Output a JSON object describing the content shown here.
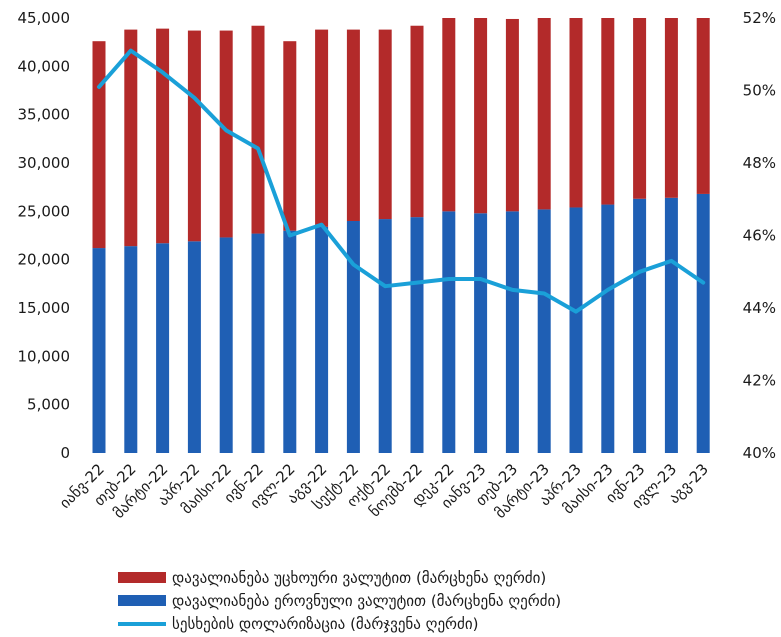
{
  "chart_data": {
    "type": "bar",
    "categories": [
      "იანვ-22",
      "თებ-22",
      "მარტი-22",
      "აპრ-22",
      "მაისი-22",
      "ივნ-22",
      "ივლ-22",
      "აგვ-22",
      "სექტ-22",
      "ოქტ-22",
      "ნოემბ-22",
      "დეკ-22",
      "იანვ-23",
      "თებ-23",
      "მარტი-23",
      "აპრ-23",
      "მაისი-23",
      "ივნ-23",
      "ივლ-23",
      "აგვ-23"
    ],
    "series": [
      {
        "name": "დავალიანება ეროვნული ვალუტით (მარცხენა ღერძი)",
        "type": "bar",
        "stack": "total",
        "axis": "left",
        "color": "#1f5fb4",
        "values": [
          21200,
          21400,
          21700,
          21900,
          22300,
          22700,
          23000,
          23400,
          24000,
          24200,
          24400,
          25000,
          24800,
          25000,
          25200,
          25400,
          25700,
          26300,
          26400,
          26800
        ]
      },
      {
        "name": "დავალიანება უცხოური ვალუტით (მარცხენა ღერძი)",
        "type": "bar",
        "stack": "total",
        "axis": "left",
        "color": "#b32a2a",
        "values": [
          21400,
          22400,
          22200,
          21800,
          21400,
          21500,
          19600,
          20400,
          19800,
          19600,
          19800,
          20300,
          20200,
          19900,
          20200,
          19900,
          20600,
          21600,
          21300,
          21200
        ]
      },
      {
        "name": "სესხების დოლარიზაცია (მარჯვენა ღერძი)",
        "type": "line",
        "axis": "right",
        "color": "#1aa0d8",
        "values": [
          50.1,
          51.1,
          50.5,
          49.8,
          48.9,
          48.4,
          46.0,
          46.3,
          45.2,
          44.6,
          44.7,
          44.8,
          44.8,
          44.5,
          44.4,
          43.9,
          44.5,
          45.0,
          45.3,
          44.7
        ]
      }
    ],
    "y_left": {
      "min": 0,
      "max": 45000,
      "step": 5000,
      "tick_labels": [
        "0",
        "5,000",
        "10,000",
        "15,000",
        "20,000",
        "25,000",
        "30,000",
        "35,000",
        "40,000",
        "45,000"
      ]
    },
    "y_right": {
      "min": 40,
      "max": 52,
      "step": 2,
      "tick_labels": [
        "40%",
        "42%",
        "44%",
        "46%",
        "48%",
        "50%",
        "52%"
      ]
    },
    "grid": false,
    "legend_position": "bottom",
    "legend": [
      {
        "label": "დავალიანება უცხოური ვალუტით (მარცხენა ღერძი)",
        "kind": "bar",
        "color": "#b32a2a"
      },
      {
        "label": "დავალიანება ეროვნული ვალუტით (მარცხენა ღერძი)",
        "kind": "bar",
        "color": "#1f5fb4"
      },
      {
        "label": "სესხების დოლარიზაცია (მარჯვენა ღერძი)",
        "kind": "line",
        "color": "#1aa0d8"
      }
    ]
  }
}
